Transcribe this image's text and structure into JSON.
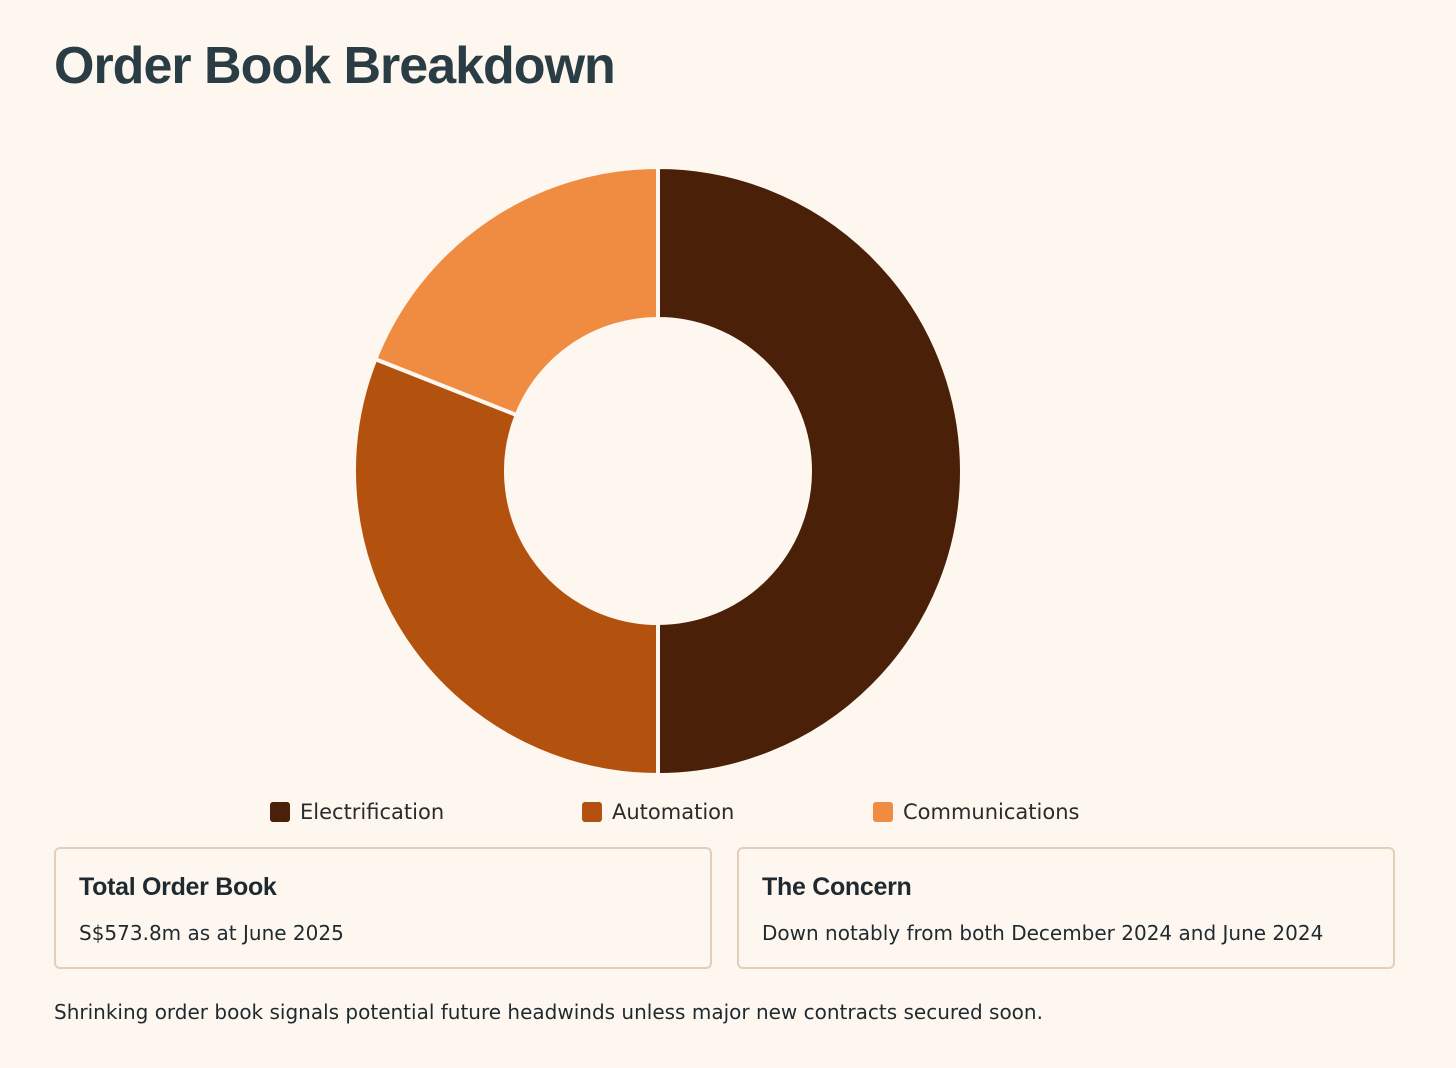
{
  "page": {
    "title": "Order Book Breakdown"
  },
  "chart_data": {
    "type": "pie",
    "donut": true,
    "title": "",
    "categories": [
      "Electrification",
      "Automation",
      "Communications"
    ],
    "values": [
      50,
      31,
      19
    ],
    "unit": "%",
    "colors": [
      "#4a2108",
      "#b3520f",
      "#f08c42"
    ],
    "legend_position": "bottom",
    "grid": false
  },
  "cards": [
    {
      "title": "Total Order Book",
      "text": "S$573.8m as at June 2025"
    },
    {
      "title": "The Concern",
      "text": "Down notably from both December 2024 and June 2024"
    }
  ],
  "footnote": "Shrinking order book signals potential future headwinds unless major new contracts secured soon."
}
